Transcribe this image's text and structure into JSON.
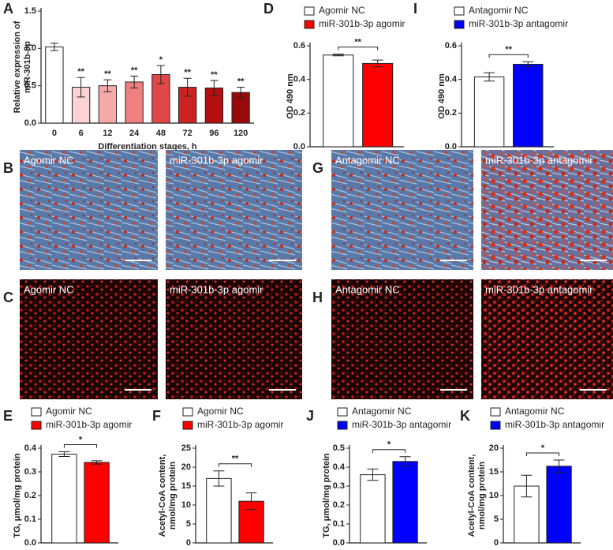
{
  "chart_data": [
    {
      "panel": "A",
      "type": "bar",
      "categories": [
        "0",
        "6",
        "12",
        "24",
        "48",
        "72",
        "96",
        "120"
      ],
      "values": [
        1.02,
        0.48,
        0.5,
        0.55,
        0.65,
        0.48,
        0.47,
        0.41
      ],
      "errors": [
        0.05,
        0.13,
        0.08,
        0.08,
        0.12,
        0.12,
        0.1,
        0.07
      ],
      "colors": [
        "#ffffff",
        "#fbd3d3",
        "#f6a9a9",
        "#f08080",
        "#e04848",
        "#cc2222",
        "#b50f0f",
        "#9a0a0a"
      ],
      "significance": [
        null,
        "**",
        "**",
        "**",
        "*",
        "**",
        "**",
        "**"
      ],
      "ylim": [
        0,
        1.5
      ],
      "yticks": [
        {
          "value": 0,
          "label": "0.0"
        },
        {
          "value": 0.5,
          "label": "0.5"
        },
        {
          "value": 1,
          "label": "1.0"
        },
        {
          "value": 1.5,
          "label": "1.5"
        }
      ],
      "y_label": [
        "Relative expression of",
        "miR-301b-3p"
      ],
      "x_label": "Differentiation stages, h"
    },
    {
      "panel": "D",
      "type": "pair",
      "series": [
        {
          "name": "Agomir NC",
          "color": "#ffffff",
          "values": [
            0.545
          ],
          "errors": [
            0.005
          ]
        },
        {
          "name": "miR-301b-3p agomir",
          "color": "#ff0000",
          "values": [
            0.495
          ],
          "errors": [
            0.02
          ]
        }
      ],
      "significance": "**",
      "ylim": [
        0,
        0.6
      ],
      "yticks": [
        {
          "value": 0,
          "label": "0.0"
        },
        {
          "value": 0.2,
          "label": "0.2"
        },
        {
          "value": 0.4,
          "label": "0.4"
        },
        {
          "value": 0.6,
          "label": "0.6"
        }
      ],
      "y_label": [
        "OD 490 nm"
      ]
    },
    {
      "panel": "I",
      "type": "pair",
      "series": [
        {
          "name": "Antagomir NC",
          "color": "#ffffff",
          "values": [
            0.415
          ],
          "errors": [
            0.025
          ]
        },
        {
          "name": "miR-301b-3p antagomir",
          "color": "#0000ff",
          "values": [
            0.49
          ],
          "errors": [
            0.015
          ]
        }
      ],
      "significance": "**",
      "ylim": [
        0,
        0.6
      ],
      "yticks": [
        {
          "value": 0,
          "label": "0.0"
        },
        {
          "value": 0.2,
          "label": "0.2"
        },
        {
          "value": 0.4,
          "label": "0.4"
        },
        {
          "value": 0.6,
          "label": "0.6"
        }
      ],
      "y_label": [
        "OD 490 nm"
      ]
    },
    {
      "panel": "E",
      "type": "pair",
      "series": [
        {
          "name": "Agomir NC",
          "color": "#ffffff",
          "values": [
            0.375
          ],
          "errors": [
            0.01
          ]
        },
        {
          "name": "miR-301b-3p agomir",
          "color": "#ff0000",
          "values": [
            0.34
          ],
          "errors": [
            0.007
          ]
        }
      ],
      "significance": "*",
      "ylim": [
        0,
        0.4
      ],
      "yticks": [
        {
          "value": 0,
          "label": "0.0"
        },
        0.1,
        0.2,
        0.3,
        0.4
      ],
      "y_label": [
        "TG, μmol/mg protein"
      ]
    },
    {
      "panel": "F",
      "type": "pair",
      "series": [
        {
          "name": "Agomir NC",
          "color": "#ffffff",
          "values": [
            17
          ],
          "errors": [
            2
          ]
        },
        {
          "name": "miR-301b-3p agomir",
          "color": "#ff0000",
          "values": [
            11
          ],
          "errors": [
            2.2
          ]
        }
      ],
      "significance": "**",
      "ylim": [
        0,
        25
      ],
      "yticks": [
        0,
        5,
        10,
        15,
        20,
        25
      ],
      "y_label": [
        "Acetyl-CoA content,",
        "nmol/mg protein"
      ]
    },
    {
      "panel": "J",
      "type": "pair",
      "series": [
        {
          "name": "Antagomir NC",
          "color": "#ffffff",
          "values": [
            0.36
          ],
          "errors": [
            0.03
          ]
        },
        {
          "name": "miR-301b-3p antagomir",
          "color": "#0000ff",
          "values": [
            0.43
          ],
          "errors": [
            0.025
          ]
        }
      ],
      "significance": "*",
      "ylim": [
        0,
        0.5
      ],
      "yticks": [
        {
          "value": 0,
          "label": "0.0"
        },
        0.1,
        0.2,
        0.3,
        0.4,
        0.5
      ],
      "y_label": [
        "TG, μmol/mg protein"
      ]
    },
    {
      "panel": "K",
      "type": "pair",
      "series": [
        {
          "name": "Antagomir NC",
          "color": "#ffffff",
          "values": [
            12
          ],
          "errors": [
            2.3
          ]
        },
        {
          "name": "miR-301b-3p antagomir",
          "color": "#0000ff",
          "values": [
            16.2
          ],
          "errors": [
            1.3
          ]
        }
      ],
      "significance": "*",
      "ylim": [
        0,
        20
      ],
      "yticks": [
        0,
        5,
        10,
        15,
        20
      ],
      "y_label": [
        "Acetyl-CoA content,",
        "nmol/mg protein"
      ]
    }
  ],
  "image_panels": [
    {
      "panel": "B",
      "tiles": [
        "Agomir NC",
        "miR-301b-3p agomir"
      ]
    },
    {
      "panel": "G",
      "tiles": [
        "Antagomir NC",
        "miR-301b-3p antagomir"
      ]
    },
    {
      "panel": "C",
      "tiles": [
        "Agomir NC",
        "miR-301b-3p agomir"
      ]
    },
    {
      "panel": "H",
      "tiles": [
        "Antagomir NC",
        "miR-301b-3p antagomir"
      ]
    }
  ]
}
